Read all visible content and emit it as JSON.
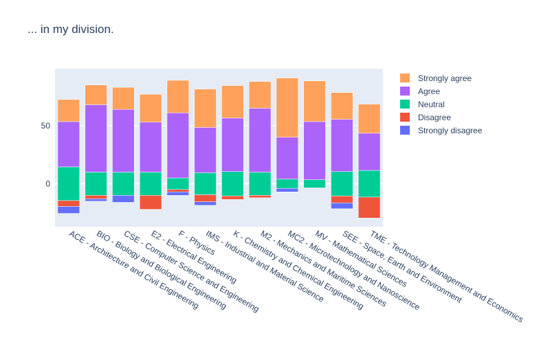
{
  "chart_data": {
    "type": "bar",
    "title": "... in my division.",
    "categories": [
      "ACE - Architecture and Civil Engineering",
      "BIO - Biology and Biological Engineering",
      "CSE - Computer Science and Engineering",
      "E2 - Electrical Engineering",
      "F - Physics",
      "IMS - Industrial and Material Science",
      "K - Chemistry and Chemical Engineering",
      "M2 - Mechanics and Maritime Sciences",
      "MC2 - Microtechnology and Nanoscience",
      "MV - Mathematical Sciences",
      "SEE - Space, Earth and Environment",
      "TME - Technology Management and Economics"
    ],
    "series": [
      {
        "name": "Strongly disagree",
        "values": [
          6,
          2,
          6,
          0,
          3,
          3,
          0,
          0,
          3,
          0,
          5,
          0
        ],
        "color": "#636efa"
      },
      {
        "name": "Disagree",
        "values": [
          5,
          3,
          0,
          12,
          2,
          6,
          3,
          2,
          0,
          0,
          6,
          18
        ],
        "color": "#ef553b"
      },
      {
        "name": "Neutral",
        "values": [
          29,
          20,
          20,
          20,
          10,
          19,
          21,
          20,
          8,
          7,
          21,
          23
        ],
        "color": "#00cc96"
      },
      {
        "name": "Agree",
        "values": [
          39,
          58,
          54,
          43,
          56,
          39,
          46,
          55,
          36,
          50,
          45,
          32
        ],
        "color": "#ab63fa"
      },
      {
        "name": "Strongly agree",
        "values": [
          19,
          17,
          19,
          24,
          28,
          33,
          28,
          23,
          51,
          35,
          23,
          25
        ],
        "color": "#ffa15a"
      }
    ],
    "stacking": "diverging (disagree below zero, neutral centered on zero, agree above)",
    "yaxis": {
      "ticks": [
        0,
        50
      ],
      "range": [
        -37,
        99
      ]
    },
    "legend": {
      "position": "right",
      "order": [
        "Strongly agree",
        "Agree",
        "Neutral",
        "Disagree",
        "Strongly disagree"
      ]
    },
    "background": "#e5ecf6",
    "grid": true
  }
}
